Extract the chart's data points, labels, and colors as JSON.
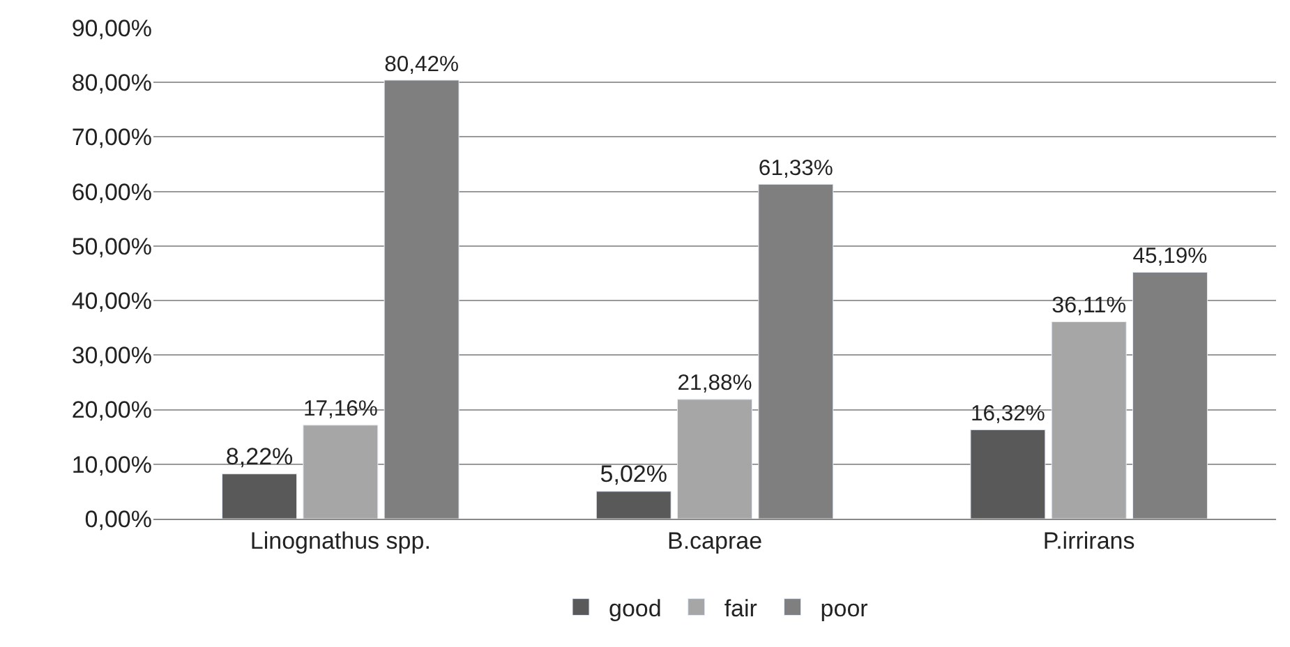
{
  "chart_data": {
    "type": "bar",
    "categories": [
      "Linognathus spp.",
      "B.caprae",
      "P.irrirans"
    ],
    "series": [
      {
        "name": "good",
        "color": "#595959",
        "values": [
          8.22,
          5.02,
          16.32
        ],
        "value_labels": [
          "8,22%",
          "5,02%",
          "16,32%"
        ]
      },
      {
        "name": "fair",
        "color": "#a6a6a6",
        "values": [
          17.16,
          21.88,
          36.11
        ],
        "value_labels": [
          "17,16%",
          "21,88%",
          "36,11%"
        ]
      },
      {
        "name": "poor",
        "color": "#7f7f7f",
        "values": [
          80.42,
          61.33,
          45.19
        ],
        "value_labels": [
          "80,42%",
          "61,33%",
          "45,19%"
        ]
      }
    ],
    "ylim": [
      0,
      90
    ],
    "yticks": [
      {
        "value": 0,
        "label": "0,00%"
      },
      {
        "value": 10,
        "label": "10,00%"
      },
      {
        "value": 20,
        "label": "20,00%"
      },
      {
        "value": 30,
        "label": "30,00%"
      },
      {
        "value": 40,
        "label": "40,00%"
      },
      {
        "value": 50,
        "label": "50,00%"
      },
      {
        "value": 60,
        "label": "60,00%"
      },
      {
        "value": 70,
        "label": "70,00%"
      },
      {
        "value": 80,
        "label": "80,00%"
      },
      {
        "value": 90,
        "label": "90,00%"
      }
    ],
    "grid": "y",
    "legend": "bottom"
  }
}
